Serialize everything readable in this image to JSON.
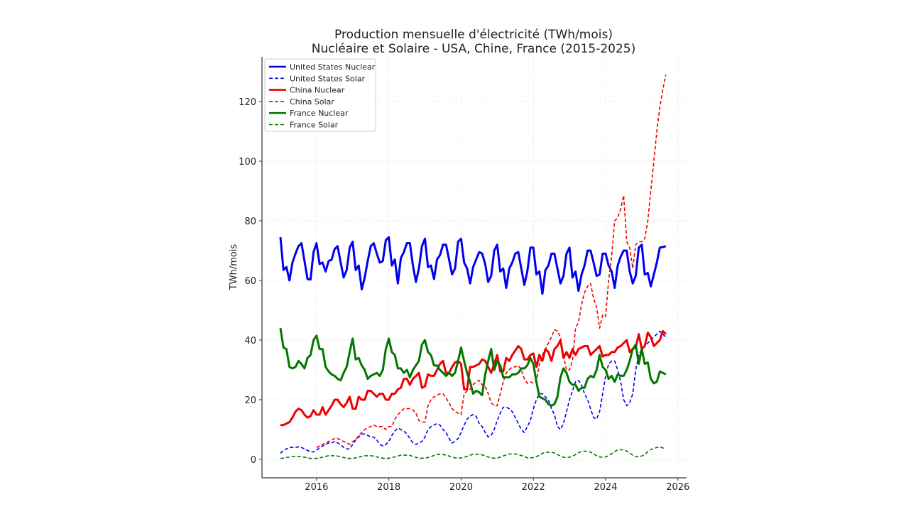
{
  "chart_data": {
    "type": "line",
    "title": "Production mensuelle d'électricité (TWh/mois)",
    "subtitle": "Nucléaire et Solaire - USA, Chine, France (2015-2025)",
    "xlabel": "",
    "ylabel": "TWh/mois",
    "xlim": [
      2014.49,
      2026.24
    ],
    "ylim": [
      -6.2,
      135
    ],
    "x_ticks": [
      "2016",
      "2018",
      "2020",
      "2022",
      "2024",
      "2026"
    ],
    "y_ticks": [
      "0",
      "20",
      "40",
      "60",
      "80",
      "100",
      "120"
    ],
    "grid": true,
    "legend_position": "top-left",
    "x_start": "2015-01",
    "x_frequency": "monthly",
    "series": [
      {
        "name": "United States Nuclear",
        "color": "#0000ee",
        "style": "solid",
        "width": 3,
        "values": [
          74.5,
          63.5,
          64.5,
          60,
          66,
          69,
          71.5,
          72.5,
          66.5,
          60.5,
          60.3,
          69.5,
          72.5,
          65.5,
          66,
          63,
          66.5,
          67,
          70.5,
          71.5,
          66,
          61,
          63.5,
          71,
          73,
          63.5,
          65,
          57,
          61,
          66.5,
          71.5,
          72.5,
          69,
          66,
          66.5,
          73.5,
          74.5,
          65,
          67,
          59,
          67.5,
          69.5,
          72.5,
          72.5,
          65,
          59.5,
          64,
          71.5,
          74,
          64.5,
          65,
          60.5,
          67,
          68.5,
          72,
          72,
          67,
          62,
          64,
          73,
          74,
          66,
          64,
          59,
          64.5,
          67,
          69.5,
          69,
          65.5,
          59.5,
          61.5,
          70,
          72,
          63,
          64,
          57.5,
          64,
          66,
          69,
          69.5,
          64,
          58.5,
          63,
          71,
          71,
          62,
          63,
          55.5,
          63.5,
          65,
          69,
          69,
          64,
          59,
          61.5,
          69,
          71,
          61,
          63,
          56.5,
          62,
          65,
          70,
          70,
          66,
          61.5,
          62,
          69,
          69,
          65,
          63,
          57.5,
          65,
          68,
          70,
          70,
          63,
          59,
          61.5,
          71,
          72,
          62,
          62.5,
          58,
          62,
          66,
          71,
          71.2,
          71.5
        ]
      },
      {
        "name": "United States Solar",
        "color": "#0000ee",
        "style": "dashed",
        "width": 1.6,
        "values": [
          2,
          3,
          3.5,
          4,
          4,
          4,
          4.2,
          4,
          3.5,
          3,
          2.5,
          2.5,
          3,
          4,
          4.5,
          5,
          5.5,
          5.5,
          6,
          5.5,
          5,
          4,
          3.5,
          3.5,
          5,
          6.5,
          7.5,
          8.5,
          8.5,
          8,
          7.5,
          7.5,
          6.5,
          5,
          4.5,
          5,
          6,
          8,
          9.5,
          10.5,
          10,
          9.5,
          8.5,
          7,
          5.5,
          5,
          5.5,
          6,
          7.5,
          10,
          11,
          11.5,
          12,
          11.5,
          10,
          9,
          7,
          5.5,
          6,
          7,
          9,
          11.5,
          13.5,
          14.5,
          15,
          14.5,
          12,
          11,
          9,
          7.5,
          8,
          10,
          13,
          15.5,
          17.5,
          17.5,
          17,
          16,
          14,
          12,
          10,
          9,
          11,
          13,
          17,
          20,
          22,
          22,
          21,
          20,
          17,
          15,
          11,
          10,
          12,
          16,
          20,
          23,
          26,
          26.5,
          25,
          22,
          20,
          17,
          14,
          13.5,
          16,
          22,
          28,
          32,
          33,
          33,
          30,
          26,
          20,
          18,
          19,
          22,
          30,
          35,
          37,
          38,
          39,
          40,
          41,
          42,
          43,
          42,
          41
        ]
      },
      {
        "name": "China Nuclear",
        "color": "#ee0000",
        "style": "solid",
        "width": 3,
        "values": [
          11.5,
          11.5,
          12,
          12.5,
          14,
          16,
          17,
          16.5,
          15,
          14,
          14.5,
          16.5,
          15,
          15,
          17.5,
          15,
          16.5,
          18,
          20,
          20,
          18.5,
          17.5,
          19,
          21,
          17,
          17,
          21,
          20,
          20,
          23,
          23,
          22,
          21,
          22,
          22,
          20,
          20,
          22,
          22,
          23.5,
          24,
          27,
          27,
          25,
          27,
          28,
          29,
          24,
          24.5,
          28.5,
          28,
          28,
          30,
          32,
          33,
          29,
          29,
          31,
          32.5,
          33,
          32,
          23.5,
          23.5,
          31,
          31,
          31.5,
          32,
          33.5,
          33,
          31,
          29,
          32,
          35,
          29.5,
          29.5,
          34,
          33,
          35,
          36.5,
          38,
          37,
          33.5,
          33.5,
          35,
          35.5,
          31,
          35,
          33,
          37,
          36,
          33,
          37,
          38,
          40,
          34,
          36,
          34,
          37,
          35,
          37,
          37.5,
          38,
          38,
          35,
          36,
          37,
          38,
          34.5,
          35,
          35,
          36,
          36,
          37.5,
          38,
          39,
          40,
          36,
          37,
          37.5,
          42,
          37,
          38,
          42.5,
          41,
          38,
          39,
          40,
          43,
          42
        ]
      },
      {
        "name": "China Solar",
        "color": "#ee0000",
        "style": "dashed",
        "width": 1.6,
        "values": [
          null,
          null,
          null,
          null,
          null,
          null,
          null,
          null,
          null,
          null,
          null,
          null,
          4,
          4.5,
          5,
          5.5,
          6,
          6.5,
          7,
          7,
          6.5,
          6,
          5.5,
          5,
          6,
          6.5,
          8,
          9,
          10,
          10.5,
          11,
          11.5,
          11,
          11,
          11,
          10,
          11,
          11,
          13.5,
          15,
          16,
          17,
          17,
          17,
          16.5,
          15.5,
          13,
          12.5,
          12.5,
          18,
          20,
          21,
          21.5,
          22,
          22,
          20.5,
          19,
          17,
          16,
          15.5,
          15,
          22,
          23,
          23.5,
          25,
          26,
          26.5,
          25,
          24.5,
          22,
          19,
          18,
          18,
          22,
          26,
          29,
          30,
          31,
          31,
          31.5,
          30,
          27,
          25.5,
          26,
          25.5,
          26,
          32,
          35,
          37,
          39,
          41,
          43.5,
          43,
          41,
          35,
          30,
          30,
          33,
          44,
          46,
          52,
          56,
          58,
          59,
          54,
          51,
          44,
          48.5,
          48,
          60,
          68,
          80,
          81,
          84,
          88.5,
          73,
          71,
          64,
          72,
          73,
          73,
          74,
          80,
          90,
          100,
          110,
          118,
          124,
          129
        ]
      },
      {
        "name": "France Nuclear",
        "color": "#007700",
        "style": "solid",
        "width": 3,
        "values": [
          44,
          37.5,
          37,
          31,
          30.5,
          31,
          33,
          32,
          30.5,
          34,
          35,
          40,
          41.5,
          37,
          37,
          31,
          29.5,
          28.5,
          28,
          27,
          26.5,
          29,
          31,
          36,
          40.5,
          33.5,
          34,
          31.5,
          30,
          27,
          28,
          28.5,
          29,
          28,
          30,
          37,
          40.5,
          36,
          35,
          30.5,
          30.5,
          29,
          30,
          27.5,
          30,
          31.5,
          33,
          38.5,
          40,
          36,
          35,
          31.5,
          31.5,
          30,
          29,
          28,
          29,
          28,
          29,
          33,
          37.5,
          33,
          29,
          26,
          22,
          23,
          22.5,
          21.5,
          28.5,
          33,
          37,
          30,
          33,
          31.5,
          27.5,
          27.5,
          27.5,
          28.5,
          28.5,
          29,
          30.5,
          30.5,
          31.5,
          34,
          32,
          26,
          21,
          20.5,
          20,
          18.5,
          18,
          18.5,
          21,
          27.5,
          30.5,
          29,
          26,
          25,
          25,
          23,
          24,
          24,
          27,
          28,
          27.5,
          30,
          35,
          31,
          30,
          27,
          28,
          26,
          28.5,
          28,
          28,
          30,
          33,
          37,
          38.5,
          32,
          37,
          32,
          32.5,
          27,
          25.5,
          26,
          29.5,
          29,
          28.5
        ]
      },
      {
        "name": "France Solar",
        "color": "#007700",
        "style": "dashed",
        "width": 1.6,
        "values": [
          0.3,
          0.4,
          0.6,
          0.8,
          1,
          1,
          1,
          0.9,
          0.7,
          0.5,
          0.3,
          0.3,
          0.3,
          0.5,
          0.7,
          1,
          1.2,
          1.2,
          1.2,
          1.1,
          0.8,
          0.6,
          0.4,
          0.3,
          0.3,
          0.5,
          0.7,
          1,
          1.2,
          1.2,
          1.2,
          1.1,
          0.8,
          0.6,
          0.4,
          0.3,
          0.4,
          0.6,
          0.8,
          1.1,
          1.4,
          1.4,
          1.4,
          1.3,
          1,
          0.7,
          0.4,
          0.4,
          0.4,
          0.6,
          0.9,
          1.3,
          1.6,
          1.6,
          1.6,
          1.4,
          1.1,
          0.8,
          0.5,
          0.4,
          0.5,
          0.7,
          1,
          1.4,
          1.7,
          1.7,
          1.7,
          1.5,
          1.2,
          0.8,
          0.5,
          0.4,
          0.5,
          0.7,
          1.1,
          1.5,
          1.8,
          1.8,
          1.8,
          1.6,
          1.3,
          0.9,
          0.5,
          0.5,
          0.6,
          0.9,
          1.4,
          2,
          2.4,
          2.4,
          2.4,
          2.1,
          1.6,
          1.1,
          0.7,
          0.6,
          0.7,
          1,
          1.6,
          2.2,
          2.7,
          2.7,
          2.7,
          2.4,
          1.8,
          1.2,
          0.8,
          0.7,
          0.8,
          1.2,
          1.9,
          2.6,
          3.2,
          3.2,
          3.2,
          2.8,
          2.1,
          1.4,
          0.9,
          0.9,
          1.1,
          1.6,
          2.6,
          3.3,
          3.6,
          4,
          4.2,
          3.8,
          3.6
        ]
      }
    ]
  }
}
